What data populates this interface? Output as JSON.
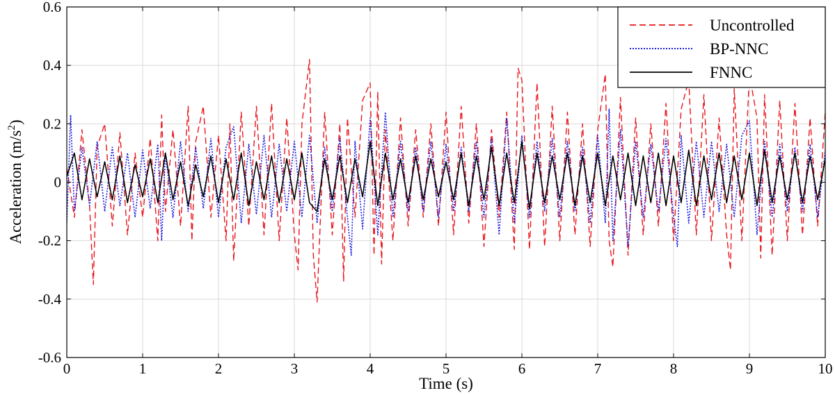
{
  "chart_data": {
    "type": "line",
    "title": "",
    "xlabel": "Time (s)",
    "ylabel_main": "Acceleration (m/s",
    "ylabel_sup": "2",
    "ylabel_close": ")",
    "xlim": [
      0,
      10
    ],
    "ylim": [
      -0.6,
      0.6
    ],
    "xticks": [
      0,
      1,
      2,
      3,
      4,
      5,
      6,
      7,
      8,
      9,
      10
    ],
    "yticks": [
      -0.6,
      -0.4,
      -0.2,
      0,
      0.2,
      0.4,
      0.6
    ],
    "xtick_labels": [
      "0",
      "1",
      "2",
      "3",
      "4",
      "5",
      "6",
      "7",
      "8",
      "9",
      "10"
    ],
    "ytick_labels": [
      "-0.6",
      "-0.4",
      "-0.2",
      "0",
      "0.2",
      "0.4",
      "0.6"
    ],
    "grid": true,
    "legend_position": "top-right",
    "legend": [
      {
        "name": "Uncontrolled",
        "color": "#e8141b",
        "style": "dashed"
      },
      {
        "name": "BP-NNC",
        "color": "#1a1adc",
        "style": "dotted"
      },
      {
        "name": "FNNC",
        "color": "#000000",
        "style": "solid"
      }
    ],
    "series": [
      {
        "name": "Uncontrolled",
        "x": [
          0.0,
          0.1,
          0.2,
          0.3,
          0.35,
          0.4,
          0.5,
          0.6,
          0.7,
          0.8,
          0.9,
          1.0,
          1.1,
          1.2,
          1.25,
          1.3,
          1.4,
          1.5,
          1.6,
          1.65,
          1.7,
          1.8,
          1.9,
          2.0,
          2.1,
          2.15,
          2.2,
          2.3,
          2.4,
          2.5,
          2.6,
          2.7,
          2.8,
          2.9,
          3.0,
          3.05,
          3.1,
          3.2,
          3.25,
          3.3,
          3.4,
          3.5,
          3.6,
          3.65,
          3.7,
          3.8,
          3.9,
          4.0,
          4.05,
          4.1,
          4.15,
          4.2,
          4.3,
          4.4,
          4.5,
          4.6,
          4.7,
          4.8,
          4.9,
          5.0,
          5.1,
          5.2,
          5.3,
          5.4,
          5.5,
          5.6,
          5.7,
          5.8,
          5.9,
          5.95,
          6.0,
          6.1,
          6.2,
          6.3,
          6.4,
          6.5,
          6.6,
          6.7,
          6.8,
          6.9,
          7.0,
          7.1,
          7.15,
          7.2,
          7.3,
          7.4,
          7.5,
          7.6,
          7.7,
          7.8,
          7.9,
          8.0,
          8.1,
          8.2,
          8.3,
          8.4,
          8.5,
          8.6,
          8.7,
          8.75,
          8.8,
          8.9,
          9.0,
          9.1,
          9.15,
          9.2,
          9.3,
          9.4,
          9.5,
          9.6,
          9.7,
          9.8,
          9.9,
          10.0
        ],
        "values": [
          0.05,
          -0.12,
          0.18,
          -0.08,
          -0.35,
          0.12,
          0.2,
          -0.15,
          0.17,
          -0.18,
          0.1,
          -0.12,
          0.15,
          -0.2,
          0.23,
          -0.1,
          0.18,
          -0.15,
          0.26,
          -0.2,
          0.14,
          0.26,
          -0.12,
          0.16,
          -0.2,
          0.2,
          -0.27,
          0.24,
          -0.15,
          0.26,
          -0.18,
          0.27,
          -0.2,
          0.22,
          -0.18,
          -0.3,
          0.2,
          0.42,
          -0.25,
          -0.41,
          0.24,
          -0.18,
          0.2,
          -0.34,
          0.22,
          -0.12,
          0.28,
          0.34,
          -0.25,
          0.31,
          -0.28,
          0.18,
          -0.2,
          0.22,
          -0.15,
          0.18,
          -0.12,
          0.2,
          -0.15,
          0.24,
          -0.18,
          0.26,
          -0.14,
          0.2,
          -0.22,
          0.18,
          -0.12,
          0.24,
          -0.23,
          0.39,
          0.35,
          -0.23,
          0.34,
          -0.22,
          0.26,
          -0.2,
          0.24,
          -0.18,
          0.2,
          -0.22,
          0.18,
          0.37,
          -0.2,
          -0.29,
          0.29,
          -0.25,
          0.22,
          -0.18,
          0.2,
          -0.15,
          0.27,
          -0.2,
          0.25,
          0.35,
          -0.18,
          0.3,
          -0.2,
          0.22,
          -0.18,
          -0.3,
          0.32,
          -0.2,
          0.37,
          0.22,
          -0.26,
          0.3,
          -0.25,
          0.28,
          -0.2,
          0.27,
          -0.18,
          0.22,
          -0.15,
          0.24
        ]
      },
      {
        "name": "BP-NNC",
        "x": [
          0.0,
          0.05,
          0.1,
          0.2,
          0.3,
          0.4,
          0.5,
          0.6,
          0.7,
          0.8,
          0.9,
          1.0,
          1.1,
          1.2,
          1.25,
          1.3,
          1.4,
          1.5,
          1.6,
          1.7,
          1.8,
          1.9,
          2.0,
          2.1,
          2.2,
          2.3,
          2.4,
          2.5,
          2.6,
          2.7,
          2.8,
          2.9,
          3.0,
          3.1,
          3.2,
          3.3,
          3.4,
          3.5,
          3.6,
          3.7,
          3.75,
          3.8,
          3.9,
          4.0,
          4.1,
          4.2,
          4.3,
          4.4,
          4.5,
          4.6,
          4.7,
          4.8,
          4.9,
          5.0,
          5.1,
          5.2,
          5.3,
          5.4,
          5.5,
          5.6,
          5.7,
          5.8,
          5.9,
          6.0,
          6.1,
          6.2,
          6.3,
          6.4,
          6.5,
          6.6,
          6.7,
          6.8,
          6.9,
          7.0,
          7.1,
          7.15,
          7.2,
          7.3,
          7.4,
          7.5,
          7.6,
          7.7,
          7.8,
          7.9,
          8.0,
          8.05,
          8.1,
          8.2,
          8.3,
          8.4,
          8.5,
          8.6,
          8.7,
          8.8,
          8.9,
          9.0,
          9.1,
          9.2,
          9.3,
          9.4,
          9.5,
          9.6,
          9.7,
          9.8,
          9.9,
          10.0
        ],
        "values": [
          -0.14,
          0.23,
          -0.1,
          0.12,
          -0.08,
          0.14,
          -0.1,
          0.12,
          -0.08,
          0.1,
          -0.12,
          0.11,
          -0.09,
          0.13,
          -0.2,
          0.1,
          -0.12,
          0.14,
          -0.1,
          0.12,
          -0.09,
          0.15,
          -0.12,
          0.12,
          0.19,
          -0.14,
          0.13,
          -0.11,
          0.16,
          -0.12,
          0.13,
          -0.1,
          0.14,
          -0.12,
          0.16,
          -0.14,
          0.12,
          -0.1,
          0.15,
          -0.12,
          -0.25,
          0.14,
          -0.16,
          0.22,
          -0.18,
          0.24,
          -0.12,
          0.14,
          -0.1,
          0.12,
          -0.1,
          0.14,
          -0.12,
          0.13,
          -0.1,
          0.12,
          -0.1,
          0.14,
          -0.12,
          0.15,
          -0.18,
          0.22,
          -0.14,
          0.16,
          -0.12,
          0.14,
          -0.1,
          0.15,
          -0.12,
          0.14,
          -0.1,
          0.12,
          -0.14,
          0.16,
          -0.14,
          0.25,
          -0.2,
          0.18,
          -0.22,
          0.14,
          -0.12,
          0.13,
          -0.1,
          0.15,
          -0.12,
          -0.22,
          0.16,
          -0.14,
          0.14,
          -0.12,
          0.14,
          -0.1,
          0.13,
          -0.12,
          0.16,
          0.21,
          -0.18,
          0.14,
          -0.12,
          0.13,
          -0.1,
          0.12,
          -0.1,
          0.13,
          -0.12,
          0.11
        ]
      },
      {
        "name": "FNNC",
        "x": [
          0.0,
          0.1,
          0.2,
          0.3,
          0.4,
          0.5,
          0.6,
          0.7,
          0.8,
          0.9,
          1.0,
          1.1,
          1.2,
          1.3,
          1.4,
          1.5,
          1.6,
          1.7,
          1.8,
          1.9,
          2.0,
          2.1,
          2.2,
          2.3,
          2.4,
          2.5,
          2.6,
          2.7,
          2.8,
          2.9,
          3.0,
          3.1,
          3.2,
          3.3,
          3.4,
          3.5,
          3.6,
          3.7,
          3.8,
          3.9,
          4.0,
          4.1,
          4.2,
          4.3,
          4.4,
          4.5,
          4.6,
          4.7,
          4.8,
          4.9,
          5.0,
          5.1,
          5.2,
          5.3,
          5.4,
          5.5,
          5.6,
          5.7,
          5.8,
          5.9,
          6.0,
          6.1,
          6.2,
          6.3,
          6.4,
          6.5,
          6.6,
          6.7,
          6.8,
          6.9,
          7.0,
          7.1,
          7.2,
          7.3,
          7.4,
          7.5,
          7.6,
          7.7,
          7.8,
          7.9,
          8.0,
          8.1,
          8.2,
          8.3,
          8.4,
          8.5,
          8.6,
          8.7,
          8.8,
          8.9,
          9.0,
          9.1,
          9.2,
          9.3,
          9.4,
          9.5,
          9.6,
          9.7,
          9.8,
          9.9,
          10.0
        ],
        "values": [
          0.02,
          0.1,
          -0.06,
          0.08,
          -0.05,
          0.07,
          -0.06,
          0.09,
          -0.07,
          0.06,
          -0.05,
          0.08,
          -0.07,
          0.1,
          -0.06,
          0.07,
          -0.08,
          0.06,
          -0.05,
          0.09,
          -0.07,
          0.08,
          -0.06,
          0.1,
          -0.08,
          0.07,
          -0.06,
          0.09,
          -0.07,
          0.08,
          -0.06,
          0.1,
          -0.07,
          -0.1,
          0.08,
          -0.06,
          0.09,
          -0.07,
          0.08,
          -0.05,
          0.14,
          -0.08,
          0.1,
          -0.06,
          0.08,
          -0.07,
          0.09,
          -0.06,
          0.08,
          -0.05,
          0.07,
          -0.06,
          0.1,
          -0.08,
          0.09,
          -0.06,
          0.12,
          -0.08,
          0.1,
          -0.07,
          0.14,
          -0.09,
          0.1,
          -0.07,
          0.09,
          -0.06,
          0.1,
          -0.08,
          0.09,
          -0.07,
          0.1,
          -0.08,
          0.09,
          -0.06,
          0.1,
          -0.08,
          0.09,
          -0.07,
          0.1,
          -0.08,
          0.09,
          -0.07,
          0.11,
          -0.08,
          0.09,
          -0.06,
          0.1,
          -0.07,
          0.09,
          -0.06,
          0.1,
          -0.08,
          0.11,
          -0.07,
          0.09,
          -0.06,
          0.1,
          -0.07,
          0.09,
          -0.06,
          0.08
        ]
      }
    ]
  }
}
